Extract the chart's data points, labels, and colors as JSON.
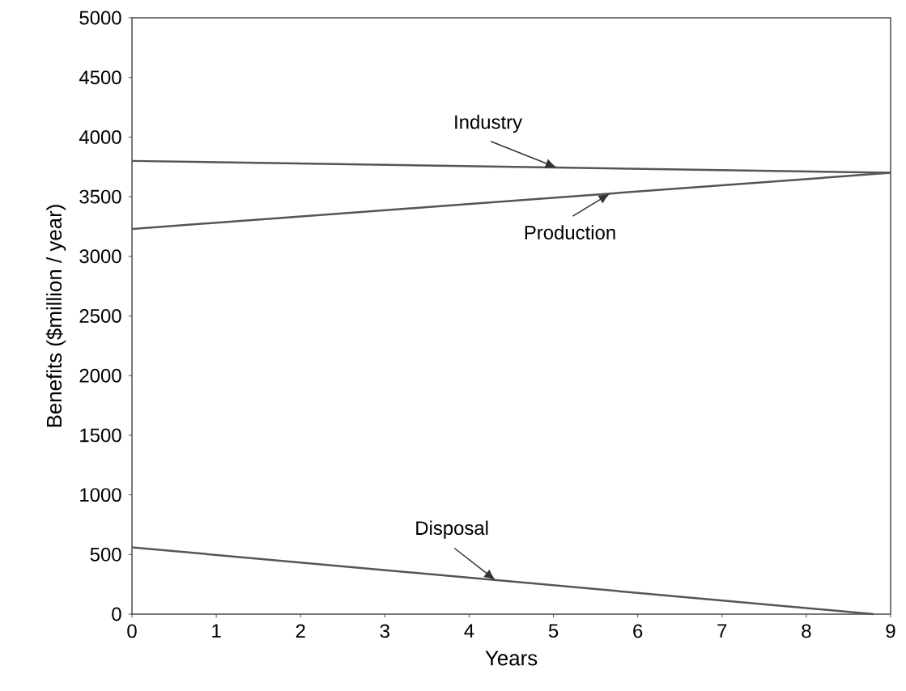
{
  "chart_data": {
    "type": "line",
    "xlabel": "Years",
    "ylabel": "Benefits ($million / year)",
    "series": [
      {
        "name": "Industry",
        "color": "#555555",
        "x": [
          0,
          9
        ],
        "values": [
          3800,
          3700
        ]
      },
      {
        "name": "Production",
        "color": "#555555",
        "x": [
          0,
          9
        ],
        "values": [
          3230,
          3700
        ]
      },
      {
        "name": "Disposal",
        "color": "#555555",
        "x": [
          0,
          8.8
        ],
        "values": [
          560,
          0
        ]
      }
    ],
    "xlim": [
      0,
      9
    ],
    "ylim": [
      0,
      5000
    ],
    "xticks": [
      0,
      1,
      2,
      3,
      4,
      5,
      6,
      7,
      8,
      9
    ],
    "yticks": [
      0,
      500,
      1000,
      1500,
      2000,
      2500,
      3000,
      3500,
      4000,
      4500,
      5000
    ],
    "grid": false,
    "legend": false,
    "marker": "none",
    "line_style": "solid"
  }
}
